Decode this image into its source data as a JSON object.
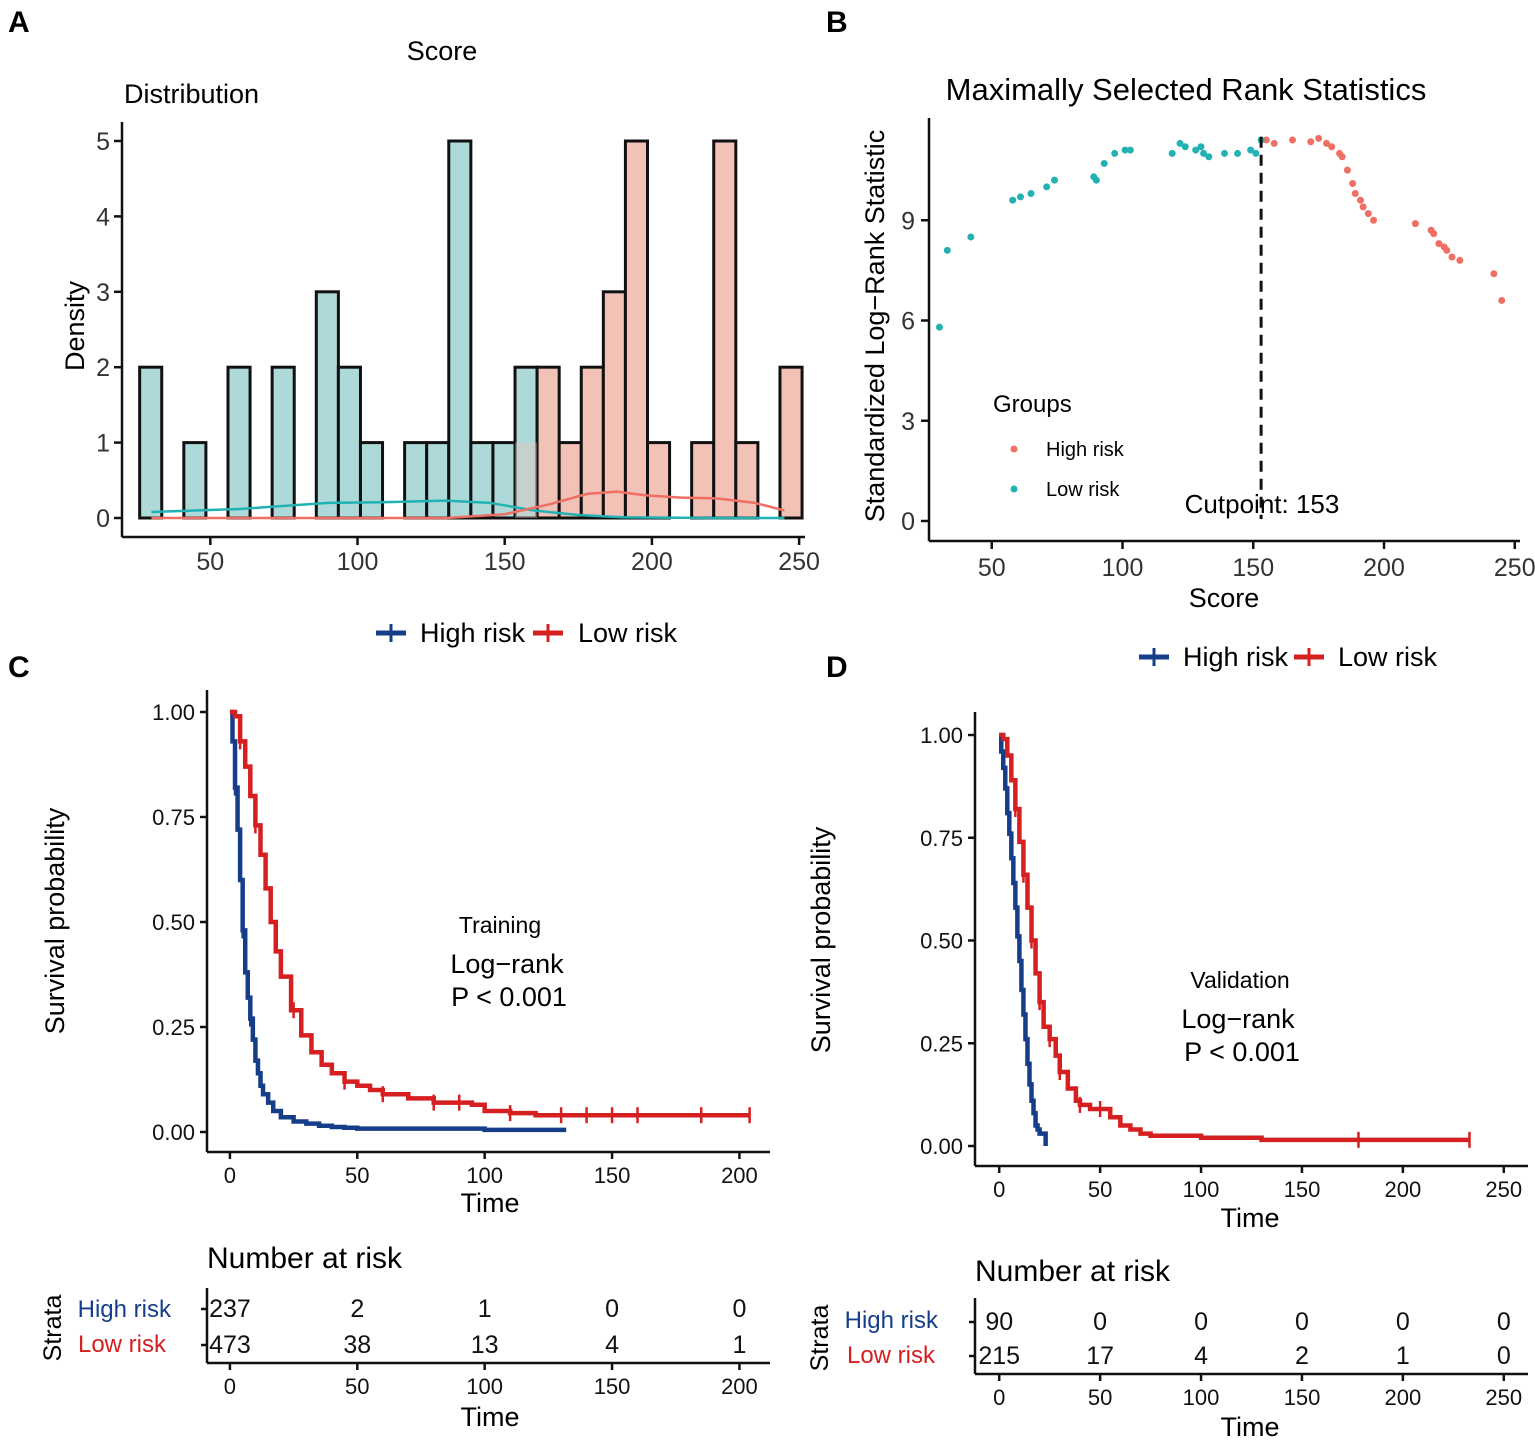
{
  "figure": {
    "panels": {
      "a": "A",
      "b": "B",
      "c": "C",
      "d": "D"
    },
    "legend_high": "High risk",
    "legend_low": "Low risk",
    "colors": {
      "teal": "#23b2b4",
      "teal_fill": "#aed9d9",
      "salmon": "#ef6f64",
      "salmon_fill": "#f3c2b6",
      "high_km": "#163d8a",
      "low_km": "#d51f20"
    }
  },
  "chart_data": [
    {
      "id": "A",
      "type": "bar",
      "title": "Score",
      "subtitle": "Distribution",
      "xlabel": "",
      "ylabel": "Density",
      "xlim": [
        20,
        252
      ],
      "ylim": [
        0,
        5
      ],
      "xticks": [
        50,
        100,
        150,
        200,
        250
      ],
      "yticks": [
        0,
        1,
        2,
        3,
        4,
        5
      ],
      "bin_width": 7.5,
      "bins": [
        {
          "left": 26,
          "count": 2,
          "group": "low"
        },
        {
          "left": 41,
          "count": 1,
          "group": "low"
        },
        {
          "left": 56,
          "count": 2,
          "group": "low"
        },
        {
          "left": 71,
          "count": 2,
          "group": "low"
        },
        {
          "left": 86,
          "count": 3,
          "group": "low"
        },
        {
          "left": 93.5,
          "count": 2,
          "group": "low"
        },
        {
          "left": 101,
          "count": 1,
          "group": "low"
        },
        {
          "left": 116,
          "count": 1,
          "group": "low"
        },
        {
          "left": 123.5,
          "count": 1,
          "group": "low"
        },
        {
          "left": 131,
          "count": 5,
          "group": "low"
        },
        {
          "left": 138.5,
          "count": 1,
          "group": "low"
        },
        {
          "left": 146,
          "count": 1,
          "group": "low"
        },
        {
          "left": 153.5,
          "count": 2,
          "group": "low"
        },
        {
          "left": 161,
          "count": 2,
          "group": "high"
        },
        {
          "left": 168.5,
          "count": 1,
          "group": "high"
        },
        {
          "left": 176,
          "count": 2,
          "group": "high"
        },
        {
          "left": 183.5,
          "count": 3,
          "group": "high"
        },
        {
          "left": 191,
          "count": 5,
          "group": "high"
        },
        {
          "left": 198.5,
          "count": 1,
          "group": "high"
        },
        {
          "left": 213.5,
          "count": 1,
          "group": "high"
        },
        {
          "left": 221,
          "count": 5,
          "group": "high"
        },
        {
          "left": 228.5,
          "count": 1,
          "group": "high"
        },
        {
          "left": 243.5,
          "count": 2,
          "group": "high"
        }
      ],
      "density": {
        "low": {
          "x": [
            30,
            60,
            90,
            110,
            130,
            145,
            160,
            175,
            190,
            220,
            245
          ],
          "y": [
            0.08,
            0.12,
            0.2,
            0.21,
            0.23,
            0.2,
            0.1,
            0.04,
            0.01,
            0.0,
            0.0
          ]
        },
        "high": {
          "x": [
            30,
            130,
            150,
            165,
            178,
            188,
            198,
            210,
            222,
            235,
            245
          ],
          "y": [
            0.0,
            0.0,
            0.05,
            0.18,
            0.32,
            0.35,
            0.3,
            0.27,
            0.26,
            0.2,
            0.1
          ]
        }
      },
      "legend": [
        "High risk",
        "Low risk"
      ]
    },
    {
      "id": "B",
      "type": "scatter",
      "title": "Maximally Selected Rank Statistics",
      "xlabel": "Score",
      "ylabel": "Standardized Log−Rank Statistic",
      "xlim": [
        26,
        252
      ],
      "ylim": [
        -0.3,
        12
      ],
      "xticks": [
        50,
        100,
        150,
        200,
        250
      ],
      "yticks": [
        0,
        3,
        6,
        9
      ],
      "cutpoint": 153,
      "cutpoint_label": "Cutpoint: 153",
      "legend_title": "Groups",
      "series": [
        {
          "name": "High risk",
          "points": [
            [
              155,
              11.4
            ],
            [
              158,
              11.3
            ],
            [
              165,
              11.4
            ],
            [
              172,
              11.35
            ],
            [
              175,
              11.45
            ],
            [
              178,
              11.3
            ],
            [
              180,
              11.2
            ],
            [
              183,
              11.0
            ],
            [
              184,
              10.9
            ],
            [
              186,
              10.5
            ],
            [
              188,
              10.1
            ],
            [
              189,
              9.8
            ],
            [
              191,
              9.6
            ],
            [
              192,
              9.4
            ],
            [
              194,
              9.2
            ],
            [
              196,
              9.0
            ],
            [
              212,
              8.9
            ],
            [
              218,
              8.7
            ],
            [
              219,
              8.6
            ],
            [
              221,
              8.3
            ],
            [
              223,
              8.2
            ],
            [
              224,
              8.1
            ],
            [
              226,
              7.9
            ],
            [
              229,
              7.8
            ],
            [
              242,
              7.4
            ],
            [
              245,
              6.6
            ]
          ]
        },
        {
          "name": "Low risk",
          "points": [
            [
              30,
              5.8
            ],
            [
              33,
              8.1
            ],
            [
              42,
              8.5
            ],
            [
              58,
              9.6
            ],
            [
              61,
              9.7
            ],
            [
              65,
              9.8
            ],
            [
              71,
              10.0
            ],
            [
              74,
              10.2
            ],
            [
              89,
              10.3
            ],
            [
              90,
              10.2
            ],
            [
              93,
              10.7
            ],
            [
              97,
              11.0
            ],
            [
              101,
              11.1
            ],
            [
              103,
              11.1
            ],
            [
              119,
              11.0
            ],
            [
              122,
              11.3
            ],
            [
              124,
              11.2
            ],
            [
              128,
              11.1
            ],
            [
              130,
              11.2
            ],
            [
              131,
              11.0
            ],
            [
              133,
              10.9
            ],
            [
              139,
              11.0
            ],
            [
              144,
              11.0
            ],
            [
              149,
              11.1
            ],
            [
              151,
              11.0
            ],
            [
              153,
              11.4
            ]
          ]
        }
      ]
    },
    {
      "id": "C",
      "type": "line",
      "title": "Training",
      "annotation": [
        "Log−rank",
        "P < 0.001"
      ],
      "xlabel": "Time",
      "ylabel": "Survival probability",
      "xlim": [
        -9,
        212
      ],
      "ylim": [
        0,
        1
      ],
      "xticks": [
        0,
        50,
        100,
        150,
        200
      ],
      "yticks": [
        "0.00",
        "0.25",
        "0.50",
        "0.75",
        "1.00"
      ],
      "series": [
        {
          "name": "High risk",
          "x": [
            0,
            1,
            2,
            3,
            4,
            5,
            6,
            7,
            8,
            9,
            10,
            11,
            12,
            13,
            15,
            17,
            20,
            25,
            30,
            35,
            40,
            45,
            50,
            60,
            80,
            100,
            120,
            132
          ],
          "y": [
            1.0,
            0.93,
            0.82,
            0.72,
            0.6,
            0.48,
            0.38,
            0.32,
            0.27,
            0.22,
            0.17,
            0.14,
            0.11,
            0.09,
            0.07,
            0.05,
            0.035,
            0.025,
            0.02,
            0.015,
            0.012,
            0.01,
            0.008,
            0.008,
            0.008,
            0.005,
            0.005,
            0.005
          ],
          "censor_x": [
            2,
            5,
            8
          ]
        },
        {
          "name": "Low risk",
          "x": [
            0,
            2,
            4,
            6,
            8,
            10,
            12,
            14,
            16,
            18,
            20,
            24,
            28,
            32,
            36,
            40,
            45,
            50,
            55,
            60,
            70,
            80,
            90,
            95,
            100,
            110,
            120,
            140,
            160,
            180,
            200,
            204
          ],
          "y": [
            1.0,
            0.99,
            0.93,
            0.87,
            0.8,
            0.73,
            0.66,
            0.58,
            0.5,
            0.43,
            0.37,
            0.29,
            0.23,
            0.19,
            0.16,
            0.14,
            0.12,
            0.11,
            0.1,
            0.09,
            0.08,
            0.07,
            0.07,
            0.065,
            0.05,
            0.045,
            0.04,
            0.04,
            0.04,
            0.04,
            0.04,
            0.04
          ],
          "censor_x": [
            4,
            10,
            25,
            45,
            60,
            80,
            90,
            110,
            130,
            140,
            150,
            160,
            185,
            204
          ]
        }
      ],
      "risk_table": {
        "title": "Number at risk",
        "strata_label": "Strata",
        "times": [
          0,
          50,
          100,
          150,
          200
        ],
        "rows": [
          {
            "name": "High risk",
            "values": [
              "237",
              "2",
              "1",
              "0",
              "0"
            ]
          },
          {
            "name": "Low risk",
            "values": [
              "473",
              "38",
              "13",
              "4",
              "1"
            ]
          }
        ],
        "xlabel": "Time"
      }
    },
    {
      "id": "D",
      "type": "line",
      "title": "Validation",
      "annotation": [
        "Log−rank",
        "P < 0.001"
      ],
      "xlabel": "Time",
      "ylabel": "Survival probability",
      "xlim": [
        -12,
        262
      ],
      "ylim": [
        0,
        1
      ],
      "xticks": [
        0,
        50,
        100,
        150,
        200,
        250
      ],
      "yticks": [
        "0.00",
        "0.25",
        "0.50",
        "0.75",
        "1.00"
      ],
      "series": [
        {
          "name": "High risk",
          "x": [
            0,
            1,
            2,
            3,
            4,
            5,
            6,
            7,
            8,
            9,
            10,
            11,
            12,
            13,
            14,
            15,
            16,
            17,
            18,
            19,
            20,
            22,
            23
          ],
          "y": [
            1.0,
            0.96,
            0.92,
            0.87,
            0.81,
            0.76,
            0.7,
            0.64,
            0.58,
            0.51,
            0.45,
            0.38,
            0.32,
            0.26,
            0.2,
            0.15,
            0.11,
            0.08,
            0.05,
            0.04,
            0.03,
            0.03,
            0.0
          ],
          "censor_x": []
        },
        {
          "name": "Low risk",
          "x": [
            0,
            2,
            4,
            6,
            8,
            10,
            12,
            14,
            16,
            18,
            20,
            22,
            25,
            28,
            30,
            34,
            38,
            40,
            45,
            50,
            55,
            60,
            65,
            70,
            75,
            100,
            130,
            150,
            180,
            200,
            233
          ],
          "y": [
            1.0,
            0.99,
            0.95,
            0.89,
            0.82,
            0.74,
            0.66,
            0.58,
            0.5,
            0.42,
            0.35,
            0.29,
            0.26,
            0.22,
            0.18,
            0.14,
            0.11,
            0.1,
            0.09,
            0.09,
            0.07,
            0.05,
            0.04,
            0.03,
            0.025,
            0.02,
            0.015,
            0.015,
            0.015,
            0.015,
            0.015
          ],
          "censor_x": [
            8,
            12,
            16,
            20,
            25,
            30,
            40,
            50,
            178,
            233
          ]
        }
      ],
      "risk_table": {
        "title": "Number at risk",
        "strata_label": "Strata",
        "times": [
          0,
          50,
          100,
          150,
          200,
          250
        ],
        "rows": [
          {
            "name": "High risk",
            "values": [
              "90",
              "0",
              "0",
              "0",
              "0",
              "0"
            ]
          },
          {
            "name": "Low risk",
            "values": [
              "215",
              "17",
              "4",
              "2",
              "1",
              "0"
            ]
          }
        ],
        "xlabel": "Time"
      }
    }
  ]
}
